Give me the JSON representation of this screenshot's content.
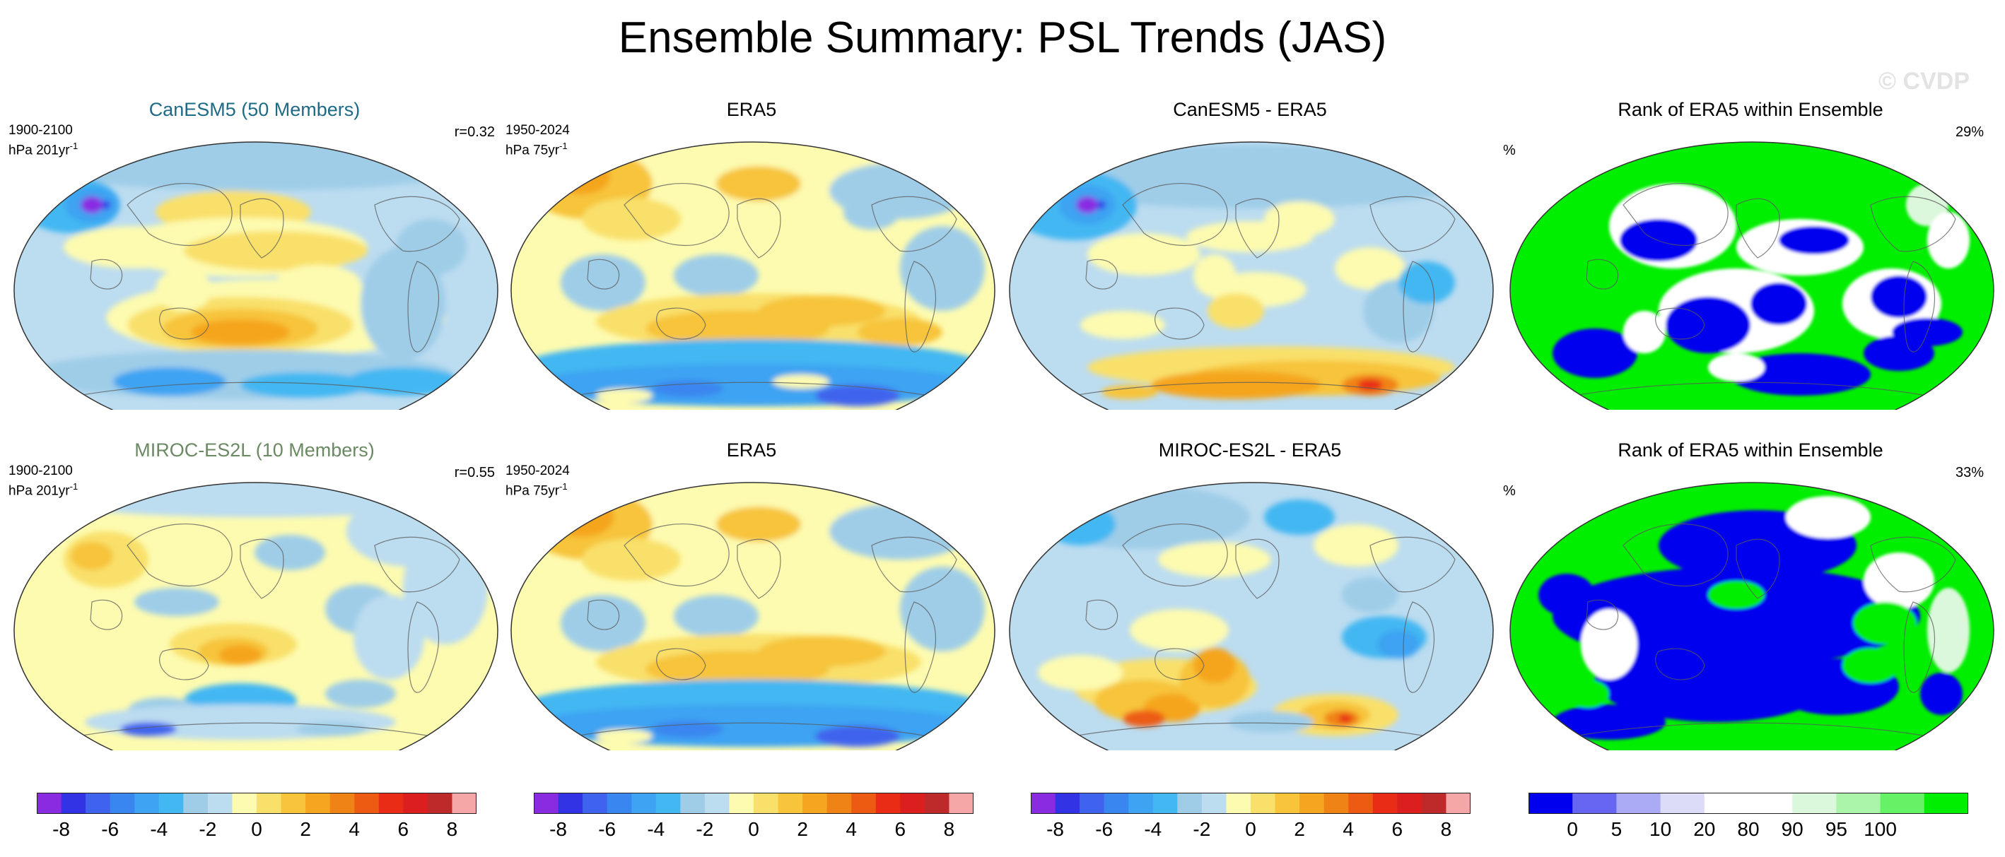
{
  "title": "Ensemble Summary: PSL Trends (JAS)",
  "watermark": "© CVDP",
  "colors": {
    "trend_scale": [
      "#8a2be2",
      "#3333e6",
      "#3f63ee",
      "#3a86f0",
      "#3da3f2",
      "#43b7f2",
      "#9fcde8",
      "#bcdcf0",
      "#fdfbb0",
      "#f9e06a",
      "#f7c43b",
      "#f5a51f",
      "#f08315",
      "#ed5b13",
      "#e82c15",
      "#db1f1f",
      "#be2a2a",
      "#f5a6a6"
    ],
    "rank_scale": [
      "#0000ee",
      "#6666f2",
      "#aaaaf5",
      "#dcdcf8",
      "#ffffff",
      "#ffffff",
      "#dcf8dc",
      "#aaf5aa",
      "#66f266",
      "#00ee00"
    ]
  },
  "panels": [
    {
      "title": "CanESM5 (50 Members)",
      "period": "1900-2100",
      "units": "hPa 201yr",
      "units_sup": "-1",
      "corr": "r=0.32"
    },
    {
      "title": "ERA5",
      "period": "1950-2024",
      "units": "hPa 75yr",
      "units_sup": "-1"
    },
    {
      "title": "CanESM5 - ERA5"
    },
    {
      "title": "Rank of ERA5 within Ensemble",
      "pct_label": "%",
      "pct_value": "29%"
    },
    {
      "title": "MIROC-ES2L (10 Members)",
      "period": "1900-2100",
      "units": "hPa 201yr",
      "units_sup": "-1",
      "corr": "r=0.55"
    },
    {
      "title": "ERA5",
      "period": "1950-2024",
      "units": "hPa 75yr",
      "units_sup": "-1"
    },
    {
      "title": "MIROC-ES2L - ERA5"
    },
    {
      "title": "Rank of ERA5 within Ensemble",
      "pct_label": "%",
      "pct_value": "33%"
    }
  ],
  "colorbars": {
    "trend_ticks": [
      "-8",
      "-6",
      "-4",
      "-2",
      "0",
      "2",
      "4",
      "6",
      "8"
    ],
    "rank_ticks": [
      "0",
      "5",
      "10",
      "20",
      "80",
      "90",
      "95",
      "100"
    ]
  },
  "chart_data": {
    "type": "heatmap",
    "variable": "PSL",
    "season": "JAS",
    "trend_levels": [
      -8,
      -7,
      -6,
      -5,
      -4,
      -3,
      -2,
      -1,
      0,
      1,
      2,
      3,
      4,
      5,
      6,
      7,
      8
    ],
    "rank_levels": [
      0,
      5,
      10,
      20,
      80,
      90,
      95,
      100
    ],
    "correlations": {
      "CanESM5": 0.32,
      "MIROC-ES2L": 0.55
    },
    "rank_percent": {
      "CanESM5": 29,
      "MIROC-ES2L": 33
    }
  }
}
